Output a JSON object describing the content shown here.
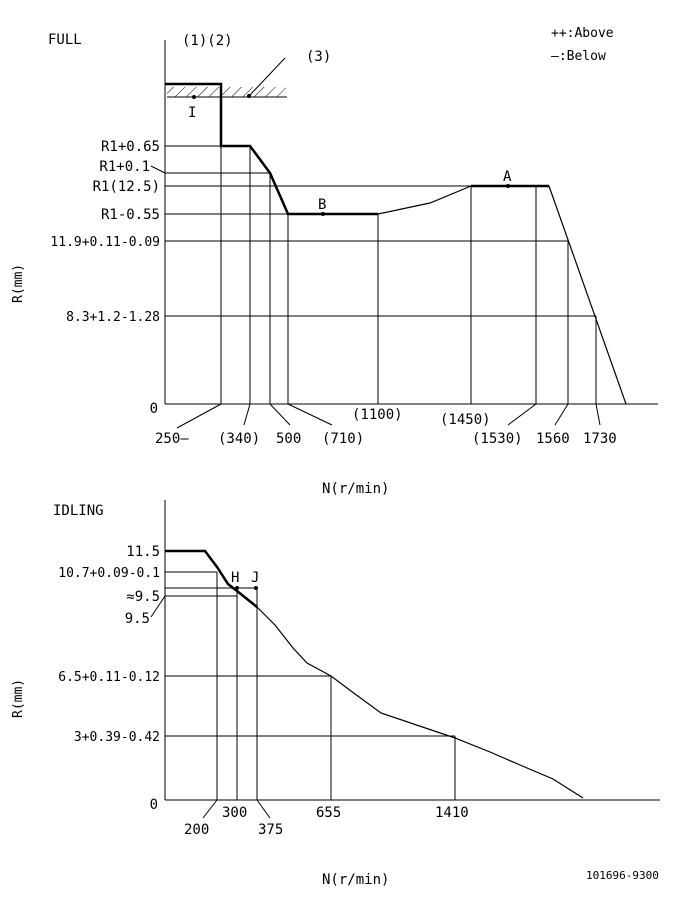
{
  "full": {
    "title": "FULL",
    "markers_label": "(1)(2)",
    "stop_label": "(3)",
    "legend": {
      "above": "++:Above",
      "below": "—:Below"
    },
    "point_i": "I",
    "point_a": "A",
    "point_b": "B",
    "y_axis_label": "R(mm)",
    "x_axis_label": "N(r/min)",
    "y_ticks": [
      "R1+0.65",
      "R1+0.1",
      "R1(12.5)",
      "R1-0.55",
      "11.9+0.11-0.09",
      "8.3+1.2-1.28"
    ],
    "y_zero": "0",
    "x_ticks": [
      "250—",
      "(340)",
      "500",
      "(710)",
      "(1100)",
      "(1450)",
      "(1530)",
      "1560",
      "1730"
    ]
  },
  "idling": {
    "title": "IDLING",
    "point_h": "H",
    "point_j": "J",
    "y_axis_label": "R(mm)",
    "x_axis_label": "N(r/min)",
    "y_ticks": [
      "11.5",
      "10.7+0.09-0.1",
      "≈9.5",
      "9.5",
      "6.5+0.11-0.12",
      "3+0.39-0.42"
    ],
    "y_zero": "0",
    "x_ticks": [
      "200",
      "300",
      "375",
      "655",
      "1410"
    ]
  },
  "doc_code": "101696-9300"
}
